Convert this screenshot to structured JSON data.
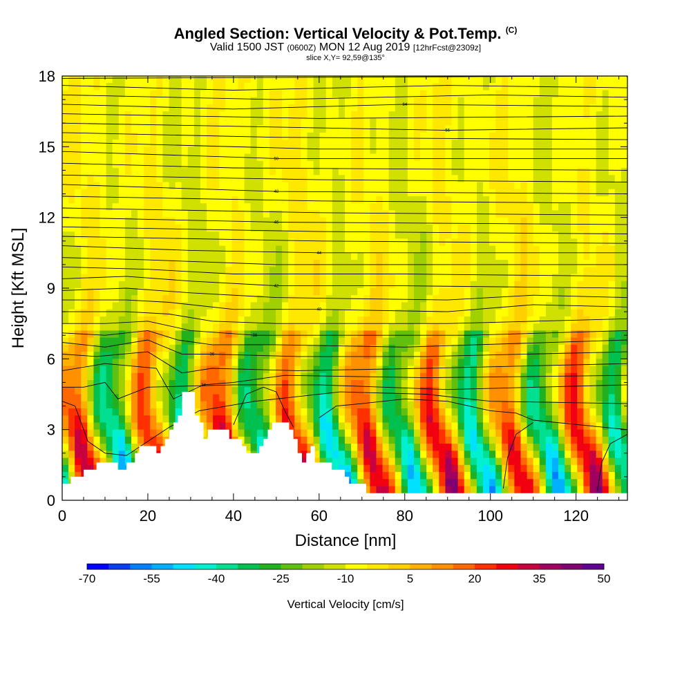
{
  "chart_data": {
    "type": "heatmap",
    "title": "Angled Section: Vertical Velocity & Pot.Temp.",
    "title_tag": "(C)",
    "subtitle_main_a": "Valid 1500 JST",
    "subtitle_small_a": "(0600Z)",
    "subtitle_main_b": "MON 12 Aug 2019",
    "subtitle_small_b": "[12hrFcst@2309z]",
    "slice_label": "slice X,Y= 92,59@135°",
    "xlabel": "Distance [nm]",
    "ylabel": "Height [Kft MSL]",
    "xlim": [
      0,
      132
    ],
    "ylim": [
      0,
      18
    ],
    "x_ticks": [
      "0",
      "20",
      "40",
      "60",
      "80",
      "100",
      "120"
    ],
    "y_ticks": [
      "0",
      "3",
      "6",
      "9",
      "12",
      "15",
      "18"
    ],
    "colorbar": {
      "title": "Vertical Velocity [cm/s]",
      "labels": [
        "-70",
        "-55",
        "-40",
        "-25",
        "-10",
        "5",
        "20",
        "35",
        "50"
      ],
      "colors": [
        "#0000ff",
        "#0a3cf0",
        "#0080ff",
        "#00b0ff",
        "#00e0ff",
        "#00f0d0",
        "#00e090",
        "#00c050",
        "#20b020",
        "#60c010",
        "#a0d000",
        "#d0e000",
        "#ffff00",
        "#ffe800",
        "#ffd000",
        "#ffb000",
        "#ff9000",
        "#ff6800",
        "#ff3000",
        "#f00010",
        "#c80040",
        "#a00060",
        "#800070",
        "#600090"
      ]
    },
    "terrain": [
      [
        0,
        0.7
      ],
      [
        2,
        0.7
      ],
      [
        2,
        1.0
      ],
      [
        5,
        1.0
      ],
      [
        5,
        1.3
      ],
      [
        8,
        1.3
      ],
      [
        8,
        1.6
      ],
      [
        13,
        1.6
      ],
      [
        13,
        1.3
      ],
      [
        15,
        1.3
      ],
      [
        15,
        1.6
      ],
      [
        17,
        1.6
      ],
      [
        17,
        2.0
      ],
      [
        18,
        2.0
      ],
      [
        18,
        2.3
      ],
      [
        22,
        2.3
      ],
      [
        22,
        2.0
      ],
      [
        23,
        2.0
      ],
      [
        23,
        2.3
      ],
      [
        24,
        2.3
      ],
      [
        24,
        2.6
      ],
      [
        25,
        2.6
      ],
      [
        25,
        3.0
      ],
      [
        26,
        3.0
      ],
      [
        26,
        3.3
      ],
      [
        27,
        3.3
      ],
      [
        27,
        3.6
      ],
      [
        28,
        3.6
      ],
      [
        28,
        4.6
      ],
      [
        31,
        4.6
      ],
      [
        31,
        3.6
      ],
      [
        32,
        3.6
      ],
      [
        32,
        3.3
      ],
      [
        33,
        3.3
      ],
      [
        33,
        2.6
      ],
      [
        34,
        2.6
      ],
      [
        34,
        3.0
      ],
      [
        39,
        3.0
      ],
      [
        39,
        2.6
      ],
      [
        42,
        2.6
      ],
      [
        42,
        2.3
      ],
      [
        43,
        2.3
      ],
      [
        43,
        2.0
      ],
      [
        46,
        2.0
      ],
      [
        46,
        2.3
      ],
      [
        47,
        2.3
      ],
      [
        47,
        2.6
      ],
      [
        48,
        2.6
      ],
      [
        48,
        3.0
      ],
      [
        49,
        3.0
      ],
      [
        49,
        3.3
      ],
      [
        53,
        3.3
      ],
      [
        53,
        3.0
      ],
      [
        54,
        3.0
      ],
      [
        54,
        2.6
      ],
      [
        55,
        2.6
      ],
      [
        55,
        2.0
      ],
      [
        56,
        2.0
      ],
      [
        56,
        1.6
      ],
      [
        57,
        1.6
      ],
      [
        57,
        2.0
      ],
      [
        58,
        2.0
      ],
      [
        58,
        2.3
      ],
      [
        59,
        2.3
      ],
      [
        59,
        1.6
      ],
      [
        63,
        1.6
      ],
      [
        63,
        1.3
      ],
      [
        66,
        1.3
      ],
      [
        66,
        1.0
      ],
      [
        67,
        1.0
      ],
      [
        67,
        0.7
      ],
      [
        71,
        0.7
      ],
      [
        71,
        0.3
      ],
      [
        132,
        0.3
      ]
    ],
    "isentropes": [
      {
        "label": "0",
        "pts": [
          [
            0,
            17.9
          ],
          [
            132,
            18.0
          ]
        ]
      },
      {
        "label": "",
        "pts": [
          [
            0,
            17.6
          ],
          [
            40,
            17.4
          ],
          [
            90,
            17.6
          ],
          [
            132,
            17.5
          ]
        ]
      },
      {
        "label": "",
        "pts": [
          [
            0,
            17.2
          ],
          [
            50,
            17.0
          ],
          [
            100,
            17.2
          ],
          [
            132,
            17.1
          ]
        ]
      },
      {
        "label": "64",
        "pts": [
          [
            0,
            16.8
          ],
          [
            40,
            16.6
          ],
          [
            80,
            16.8
          ],
          [
            132,
            16.7
          ]
        ]
      },
      {
        "label": "",
        "pts": [
          [
            0,
            16.4
          ],
          [
            60,
            16.2
          ],
          [
            132,
            16.3
          ]
        ]
      },
      {
        "label": "56",
        "pts": [
          [
            0,
            16.0
          ],
          [
            30,
            15.9
          ],
          [
            90,
            15.7
          ],
          [
            132,
            15.8
          ]
        ]
      },
      {
        "label": "",
        "pts": [
          [
            0,
            15.6
          ],
          [
            50,
            15.4
          ],
          [
            132,
            15.3
          ]
        ]
      },
      {
        "label": "",
        "pts": [
          [
            0,
            15.2
          ],
          [
            60,
            14.9
          ],
          [
            132,
            14.9
          ]
        ]
      },
      {
        "label": "50",
        "pts": [
          [
            0,
            14.8
          ],
          [
            50,
            14.5
          ],
          [
            132,
            14.5
          ]
        ]
      },
      {
        "label": "",
        "pts": [
          [
            0,
            14.3
          ],
          [
            40,
            14.1
          ],
          [
            132,
            14.0
          ]
        ]
      },
      {
        "label": "",
        "pts": [
          [
            0,
            13.8
          ],
          [
            60,
            13.6
          ],
          [
            132,
            13.5
          ]
        ]
      },
      {
        "label": "48",
        "pts": [
          [
            0,
            13.4
          ],
          [
            50,
            13.1
          ],
          [
            132,
            13.0
          ]
        ]
      },
      {
        "label": "",
        "pts": [
          [
            0,
            12.9
          ],
          [
            60,
            12.7
          ],
          [
            132,
            12.6
          ]
        ]
      },
      {
        "label": "",
        "pts": [
          [
            0,
            12.4
          ],
          [
            60,
            12.2
          ],
          [
            132,
            12.1
          ]
        ]
      },
      {
        "label": "46",
        "pts": [
          [
            0,
            12.0
          ],
          [
            50,
            11.8
          ],
          [
            132,
            11.7
          ]
        ]
      },
      {
        "label": "",
        "pts": [
          [
            0,
            11.6
          ],
          [
            60,
            11.4
          ],
          [
            132,
            11.3
          ]
        ]
      },
      {
        "label": "",
        "pts": [
          [
            0,
            11.2
          ],
          [
            60,
            11.0
          ],
          [
            132,
            10.9
          ]
        ]
      },
      {
        "label": "44",
        "pts": [
          [
            0,
            10.8
          ],
          [
            30,
            10.6
          ],
          [
            60,
            10.5
          ],
          [
            132,
            10.5
          ]
        ]
      },
      {
        "label": "",
        "pts": [
          [
            0,
            10.3
          ],
          [
            20,
            10.2
          ],
          [
            50,
            10.0
          ],
          [
            132,
            10.0
          ]
        ]
      },
      {
        "label": "",
        "pts": [
          [
            0,
            9.9
          ],
          [
            20,
            9.8
          ],
          [
            40,
            9.6
          ],
          [
            80,
            9.6
          ],
          [
            132,
            9.5
          ]
        ]
      },
      {
        "label": "42",
        "pts": [
          [
            0,
            9.4
          ],
          [
            15,
            9.5
          ],
          [
            30,
            9.3
          ],
          [
            50,
            9.1
          ],
          [
            80,
            9.1
          ],
          [
            132,
            9.0
          ]
        ]
      },
      {
        "label": "",
        "pts": [
          [
            0,
            8.9
          ],
          [
            15,
            9.0
          ],
          [
            30,
            8.8
          ],
          [
            50,
            8.6
          ],
          [
            90,
            8.5
          ],
          [
            110,
            8.7
          ],
          [
            132,
            8.6
          ]
        ]
      },
      {
        "label": "40",
        "pts": [
          [
            0,
            8.5
          ],
          [
            15,
            8.5
          ],
          [
            25,
            8.4
          ],
          [
            40,
            8.1
          ],
          [
            60,
            8.1
          ],
          [
            90,
            8.0
          ],
          [
            110,
            8.3
          ],
          [
            132,
            8.2
          ]
        ]
      },
      {
        "label": "",
        "pts": [
          [
            0,
            8.0
          ],
          [
            15,
            8.0
          ],
          [
            25,
            7.9
          ],
          [
            35,
            7.6
          ],
          [
            50,
            7.5
          ],
          [
            90,
            7.5
          ],
          [
            132,
            7.7
          ]
        ]
      },
      {
        "label": "38",
        "pts": [
          [
            0,
            7.5
          ],
          [
            10,
            7.5
          ],
          [
            20,
            7.6
          ],
          [
            30,
            7.2
          ],
          [
            45,
            7.0
          ],
          [
            70,
            7.0
          ],
          [
            95,
            7.0
          ],
          [
            132,
            7.2
          ]
        ]
      },
      {
        "label": "",
        "pts": [
          [
            0,
            7.1
          ],
          [
            10,
            7.0
          ],
          [
            20,
            7.2
          ],
          [
            27,
            6.8
          ],
          [
            35,
            6.6
          ],
          [
            50,
            6.6
          ],
          [
            80,
            6.5
          ],
          [
            132,
            6.8
          ]
        ]
      },
      {
        "label": "36",
        "pts": [
          [
            0,
            6.7
          ],
          [
            10,
            6.5
          ],
          [
            20,
            6.8
          ],
          [
            28,
            6.2
          ],
          [
            35,
            6.2
          ],
          [
            55,
            6.1
          ],
          [
            85,
            6.1
          ],
          [
            132,
            6.3
          ]
        ]
      },
      {
        "label": "",
        "pts": [
          [
            0,
            6.2
          ],
          [
            8,
            6.1
          ],
          [
            20,
            6.3
          ],
          [
            28,
            5.4
          ],
          [
            35,
            5.6
          ],
          [
            55,
            5.5
          ],
          [
            85,
            5.6
          ],
          [
            132,
            5.8
          ]
        ]
      },
      {
        "label": "34",
        "pts": [
          [
            0,
            5.5
          ],
          [
            10,
            5.8
          ],
          [
            22,
            5.6
          ],
          [
            26,
            4.3
          ],
          [
            33,
            4.9
          ],
          [
            40,
            5.0
          ],
          [
            52,
            5.3
          ],
          [
            85,
            5.2
          ],
          [
            132,
            5.3
          ]
        ]
      },
      {
        "label": "",
        "pts": [
          [
            0,
            4.8
          ],
          [
            5,
            4.8
          ],
          [
            10,
            5.0
          ],
          [
            13,
            4.3
          ],
          [
            20,
            4.8
          ],
          [
            40,
            4.9
          ],
          [
            60,
            4.9
          ],
          [
            90,
            4.7
          ],
          [
            132,
            4.9
          ]
        ]
      },
      {
        "label": "",
        "pts": [
          [
            0,
            4.2
          ],
          [
            3,
            4.0
          ],
          [
            6,
            2.5
          ],
          [
            10,
            2.0
          ],
          [
            15,
            1.9
          ],
          [
            20,
            2.5
          ],
          [
            25,
            3.1
          ],
          [
            32,
            3.8
          ],
          [
            45,
            4.2
          ],
          [
            55,
            4.4
          ],
          [
            65,
            4.6
          ],
          [
            85,
            4.5
          ],
          [
            100,
            4.2
          ],
          [
            132,
            4.1
          ]
        ]
      },
      {
        "label": "",
        "pts": [
          [
            40,
            3.2
          ],
          [
            43,
            4.5
          ],
          [
            47,
            4.8
          ],
          [
            50,
            4.6
          ],
          [
            52,
            3.8
          ],
          [
            54,
            3.1
          ]
        ]
      },
      {
        "label": "",
        "pts": [
          [
            60,
            3.5
          ],
          [
            64,
            4.0
          ],
          [
            70,
            4.1
          ],
          [
            80,
            4.3
          ],
          [
            90,
            4.2
          ],
          [
            100,
            3.8
          ],
          [
            106,
            3.7
          ],
          [
            110,
            3.4
          ],
          [
            132,
            3.0
          ]
        ]
      },
      {
        "label": "",
        "pts": [
          [
            103,
            0.5
          ],
          [
            104,
            1.8
          ],
          [
            106,
            2.8
          ],
          [
            110,
            3.3
          ]
        ]
      },
      {
        "label": "",
        "pts": [
          [
            125,
            0.4
          ],
          [
            126,
            1.6
          ],
          [
            128,
            2.4
          ],
          [
            132,
            2.8
          ]
        ]
      }
    ]
  }
}
